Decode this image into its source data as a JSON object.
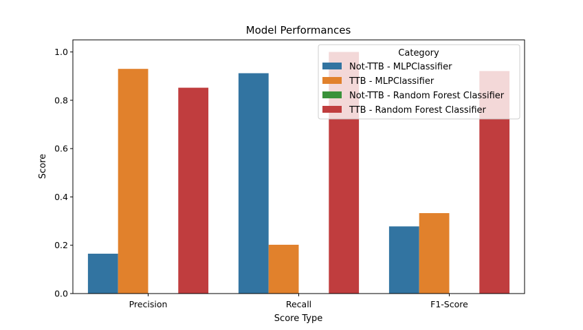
{
  "chart_data": {
    "type": "bar",
    "title": "Model Performances",
    "xlabel": "Score Type",
    "ylabel": "Score",
    "categories": [
      "Precision",
      "Recall",
      "F1-Score"
    ],
    "ylim": [
      0,
      1.05
    ],
    "yticks": [
      "0.0",
      "0.2",
      "0.4",
      "0.6",
      "0.8",
      "1.0"
    ],
    "grid": false,
    "legend": {
      "title": "Category",
      "placement": "top-right"
    },
    "series": [
      {
        "name": "Not-TTB - MLPClassifier",
        "color": "#3274a1",
        "values": [
          0.165,
          0.912,
          0.278
        ]
      },
      {
        "name": "TTB - MLPClassifier",
        "color": "#e1812c",
        "values": [
          0.93,
          0.202,
          0.333
        ]
      },
      {
        "name": "Not-TTB - Random Forest Classifier",
        "color": "#3a923a",
        "values": [
          0.0,
          0.0,
          0.0
        ]
      },
      {
        "name": "TTB - Random Forest Classifier",
        "color": "#c03d3e",
        "values": [
          0.852,
          1.0,
          0.921
        ]
      }
    ]
  }
}
